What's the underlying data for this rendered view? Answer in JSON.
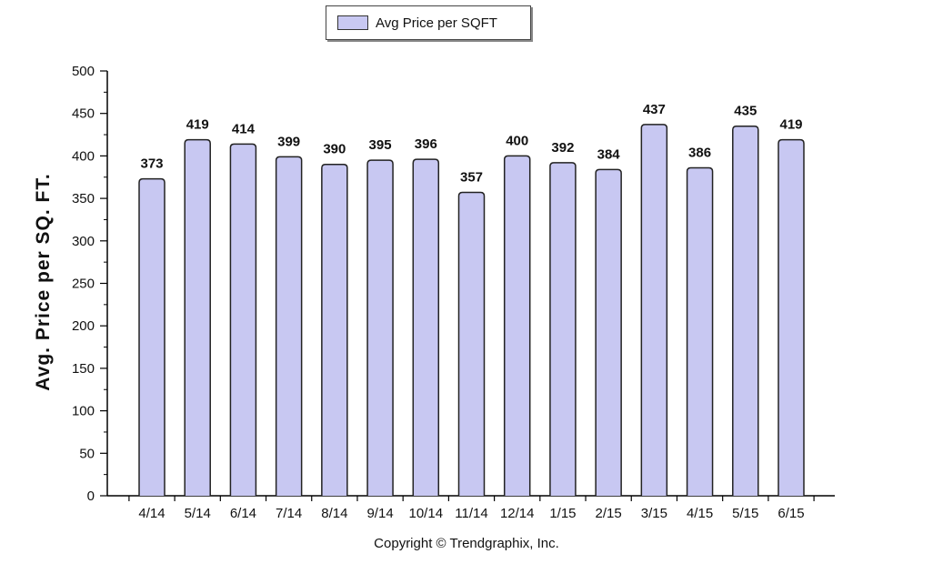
{
  "legend": {
    "label": "Avg Price per SQFT"
  },
  "footer": {
    "copyright": "Copyright © Trendgraphix, Inc."
  },
  "chart_data": {
    "type": "bar",
    "title": "",
    "xlabel": "",
    "ylabel": "Avg. Price per SQ. FT.",
    "ylim": [
      0,
      500
    ],
    "yticks": [
      0,
      50,
      100,
      150,
      200,
      250,
      300,
      350,
      400,
      450,
      500
    ],
    "grid": false,
    "legend_position": "top-center",
    "bar_color": "#c8c8f2",
    "categories": [
      "4/14",
      "5/14",
      "6/14",
      "7/14",
      "8/14",
      "9/14",
      "10/14",
      "11/14",
      "12/14",
      "1/15",
      "2/15",
      "3/15",
      "4/15",
      "5/15",
      "6/15"
    ],
    "series": [
      {
        "name": "Avg Price per SQFT",
        "values": [
          373,
          419,
          414,
          399,
          390,
          395,
          396,
          357,
          400,
          392,
          384,
          437,
          386,
          435,
          419
        ]
      }
    ]
  }
}
